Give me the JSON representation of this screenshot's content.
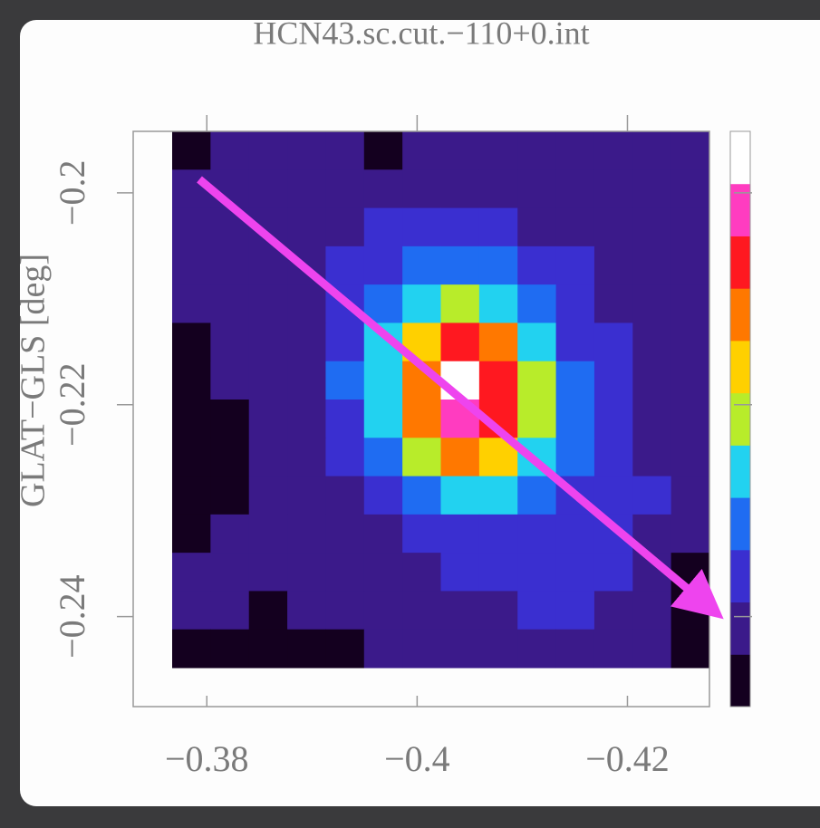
{
  "chart_data": {
    "type": "heatmap",
    "title": "HCN43.sc.cut.−110+0.int",
    "ylabel": "GLAT−GLS [deg]",
    "xlim": [
      -0.373,
      -0.4278
    ],
    "ylim": [
      -0.2485,
      -0.1942
    ],
    "xticks": [
      {
        "value": -0.38,
        "label": "−0.38"
      },
      {
        "value": -0.4,
        "label": "−0.4"
      },
      {
        "value": -0.42,
        "label": "−0.42"
      }
    ],
    "yticks": [
      {
        "value": -0.2,
        "label": "−0.2"
      },
      {
        "value": -0.22,
        "label": "−0.22"
      },
      {
        "value": -0.24,
        "label": "−0.24"
      }
    ],
    "zlim": [
      0,
      10
    ],
    "colormap": [
      "#14001f",
      "#3b1a8a",
      "#3a2fd0",
      "#1f6cf2",
      "#22d2f0",
      "#b8ec2a",
      "#ffd000",
      "#ff7800",
      "#ff1820",
      "#ff3cc0",
      "#ffffff"
    ],
    "z": [
      [
        0,
        1,
        1,
        1,
        1,
        0,
        1,
        1,
        1,
        1,
        1,
        1,
        1,
        1
      ],
      [
        1,
        1,
        1,
        1,
        1,
        1,
        1,
        1,
        1,
        1,
        1,
        1,
        1,
        1
      ],
      [
        1,
        1,
        1,
        1,
        1,
        2,
        2,
        2,
        2,
        1,
        1,
        1,
        1,
        1
      ],
      [
        1,
        1,
        1,
        1,
        2,
        2,
        3,
        3,
        3,
        2,
        2,
        1,
        1,
        1
      ],
      [
        1,
        1,
        1,
        1,
        2,
        3,
        4,
        5,
        4,
        3,
        2,
        1,
        1,
        1
      ],
      [
        0,
        1,
        1,
        1,
        2,
        4,
        6,
        8,
        7,
        4,
        2,
        2,
        1,
        1
      ],
      [
        0,
        1,
        1,
        1,
        3,
        4,
        7,
        10,
        8,
        5,
        3,
        2,
        1,
        1
      ],
      [
        0,
        0,
        1,
        1,
        2,
        4,
        7,
        9,
        8,
        5,
        3,
        2,
        1,
        1
      ],
      [
        0,
        0,
        1,
        1,
        2,
        3,
        5,
        7,
        6,
        4,
        3,
        2,
        1,
        1
      ],
      [
        0,
        0,
        1,
        1,
        1,
        2,
        3,
        4,
        4,
        3,
        2,
        2,
        2,
        1
      ],
      [
        0,
        1,
        1,
        1,
        1,
        1,
        2,
        2,
        2,
        2,
        2,
        2,
        1,
        1
      ],
      [
        1,
        1,
        1,
        1,
        1,
        1,
        1,
        2,
        2,
        2,
        2,
        2,
        1,
        0
      ],
      [
        1,
        1,
        0,
        1,
        1,
        1,
        1,
        1,
        1,
        2,
        2,
        1,
        1,
        0
      ],
      [
        0,
        0,
        0,
        0,
        0,
        1,
        1,
        1,
        1,
        1,
        1,
        1,
        1,
        0
      ]
    ]
  }
}
